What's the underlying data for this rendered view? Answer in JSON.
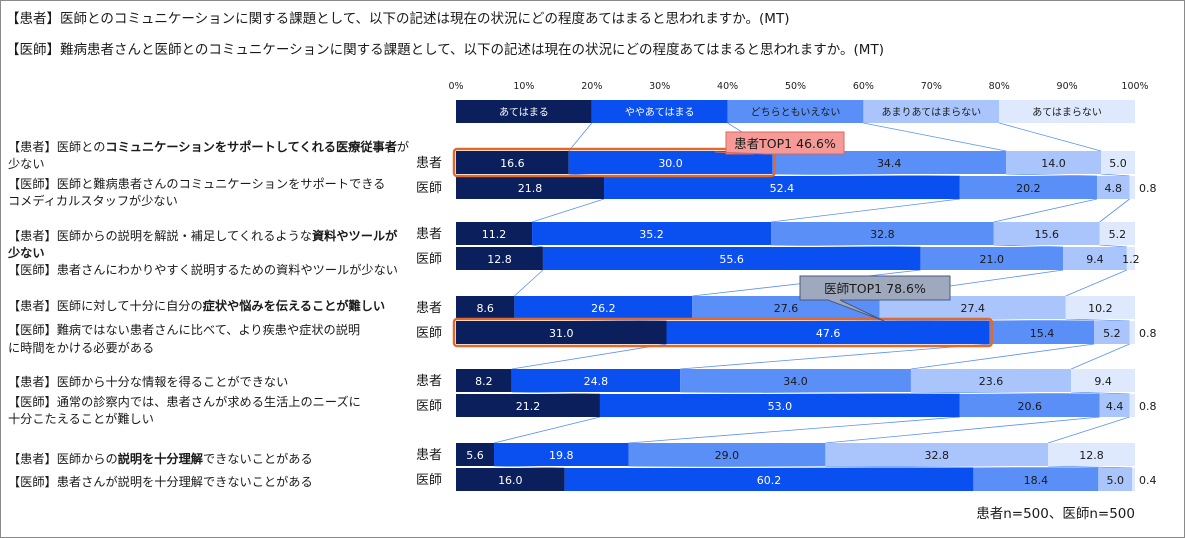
{
  "titles": [
    "【患者】医師とのコミュニケーションに関する課題として、以下の記述は現在の状況にどの程度あてはまると思われますか。(MT)",
    "【医師】難病患者さんと医師とのコミュニケーションに関する課題として、以下の記述は現在の状況にどの程度あてはまると思われますか。(MT)"
  ],
  "footnote": "患者n=500、医師n=500",
  "colors": {
    "series": [
      "#0a1f5c",
      "#0a4ff0",
      "#5a8ff7",
      "#a9c5fb",
      "#dfe9fd"
    ],
    "highlight_border": "#e0692b",
    "connector": "#5a8ff7"
  },
  "chart_data": {
    "type": "bar",
    "orientation": "horizontal",
    "stacked": true,
    "xlim": [
      0,
      100
    ],
    "xticks": [
      "0%",
      "10%",
      "20%",
      "30%",
      "40%",
      "50%",
      "60%",
      "70%",
      "80%",
      "90%",
      "100%"
    ],
    "series_names": [
      "あてはまる",
      "ややあてはまる",
      "どちらともいえない",
      "あまりあてはまらない",
      "あてはまらない"
    ],
    "groups": [
      {
        "label_lines": [
          [
            {
              "t": "【患者】医師との",
              "b": false
            },
            {
              "t": "コミュニケーションをサポートしてくれる医療従事者",
              "b": true
            },
            {
              "t": "が",
              "b": false
            }
          ],
          [
            {
              "t": "少ない",
              "b": false
            }
          ],
          [
            {
              "t": "【医師】医師と難病患者さんのコミュニケーションをサポートできる",
              "b": false
            }
          ],
          [
            {
              "t": "コメディカルスタッフが少ない",
              "b": false
            }
          ]
        ],
        "rows": [
          {
            "who": "患者",
            "values": [
              16.6,
              30.0,
              34.4,
              14.0,
              5.0
            ],
            "labels": [
              "16.6",
              "30.0",
              "34.4",
              "14.0",
              "5.0"
            ],
            "outside": ""
          },
          {
            "who": "医師",
            "values": [
              21.8,
              52.4,
              20.2,
              4.8,
              0.8
            ],
            "labels": [
              "21.8",
              "52.4",
              "20.2",
              "4.8",
              ""
            ],
            "outside": "0.8"
          }
        ]
      },
      {
        "label_lines": [
          [
            {
              "t": "【患者】医師からの説明を解説・補足してくれるような",
              "b": false
            },
            {
              "t": "資料やツールが",
              "b": true
            }
          ],
          [
            {
              "t": "少ない",
              "b": true
            }
          ],
          [
            {
              "t": "【医師】患者さんにわかりやすく説明するための資料やツールが少ない",
              "b": false
            }
          ]
        ],
        "rows": [
          {
            "who": "患者",
            "values": [
              11.2,
              35.2,
              32.8,
              15.6,
              5.2
            ],
            "labels": [
              "11.2",
              "35.2",
              "32.8",
              "15.6",
              "5.2"
            ],
            "outside": ""
          },
          {
            "who": "医師",
            "values": [
              12.8,
              55.6,
              21.0,
              9.4,
              1.2
            ],
            "labels": [
              "12.8",
              "55.6",
              "21.0",
              "9.4",
              "1.2"
            ],
            "outside": ""
          }
        ]
      },
      {
        "label_lines": [
          [
            {
              "t": "【患者】医師に対して十分に自分の",
              "b": false
            },
            {
              "t": "症状や悩みを伝えることが難しい",
              "b": true
            }
          ],
          [
            {
              "t": "【医師】難病ではない患者さんに比べて、より疾患や症状の説明",
              "b": false
            }
          ],
          [
            {
              "t": "に時間をかける必要がある",
              "b": false
            }
          ]
        ],
        "rows": [
          {
            "who": "患者",
            "values": [
              8.6,
              26.2,
              27.6,
              27.4,
              10.2
            ],
            "labels": [
              "8.6",
              "26.2",
              "27.6",
              "27.4",
              "10.2"
            ],
            "outside": ""
          },
          {
            "who": "医師",
            "values": [
              31.0,
              47.6,
              15.4,
              5.2,
              0.8
            ],
            "labels": [
              "31.0",
              "47.6",
              "15.4",
              "5.2",
              ""
            ],
            "outside": "0.8"
          }
        ]
      },
      {
        "label_lines": [
          [
            {
              "t": "【患者】医師から十分な情報を得ることができない",
              "b": false
            }
          ],
          [
            {
              "t": "【医師】通常の診察内では、患者さんが求める生活上のニーズに",
              "b": false
            }
          ],
          [
            {
              "t": "十分こたえることが難しい",
              "b": false
            }
          ]
        ],
        "rows": [
          {
            "who": "患者",
            "values": [
              8.2,
              24.8,
              34.0,
              23.6,
              9.4
            ],
            "labels": [
              "8.2",
              "24.8",
              "34.0",
              "23.6",
              "9.4"
            ],
            "outside": ""
          },
          {
            "who": "医師",
            "values": [
              21.2,
              53.0,
              20.6,
              4.4,
              0.8
            ],
            "labels": [
              "21.2",
              "53.0",
              "20.6",
              "4.4",
              ""
            ],
            "outside": "0.8"
          }
        ]
      },
      {
        "label_lines": [
          [
            {
              "t": "【患者】医師からの",
              "b": false
            },
            {
              "t": "説明を十分理解",
              "b": true
            },
            {
              "t": "できないことがある",
              "b": false
            }
          ],
          [
            {
              "t": "【医師】患者さんが説明を十分理解できないことがある",
              "b": false
            }
          ]
        ],
        "rows": [
          {
            "who": "患者",
            "values": [
              5.6,
              19.8,
              29.0,
              32.8,
              12.8
            ],
            "labels": [
              "5.6",
              "19.8",
              "29.0",
              "32.8",
              "12.8"
            ],
            "outside": ""
          },
          {
            "who": "医師",
            "values": [
              16.0,
              60.2,
              18.4,
              5.0,
              0.4
            ],
            "labels": [
              "16.0",
              "60.2",
              "18.4",
              "5.0",
              ""
            ],
            "outside": "0.4"
          }
        ]
      }
    ],
    "annotations": [
      {
        "text": "患者TOP1 46.6%",
        "group": 0,
        "row": 0,
        "sum_of_segments": 2
      },
      {
        "text": "医師TOP1 78.6%",
        "group": 2,
        "row": 1,
        "sum_of_segments": 2
      }
    ]
  }
}
